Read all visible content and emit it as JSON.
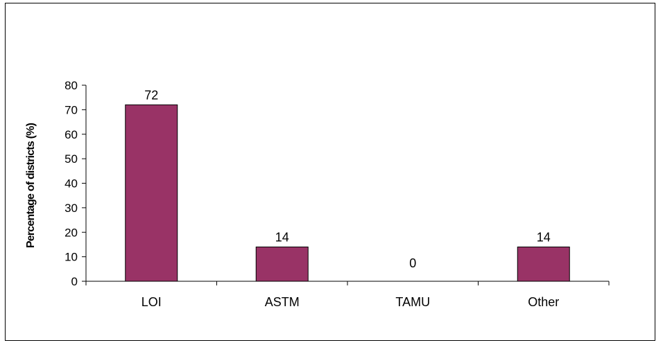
{
  "chart_data": {
    "type": "bar",
    "title": "",
    "xlabel": "",
    "ylabel": "Percentage of districts (%)",
    "categories": [
      "LOI",
      "ASTM",
      "TAMU",
      "Other"
    ],
    "values": [
      72,
      14,
      0,
      14
    ],
    "data_labels": [
      "72",
      "14",
      "0",
      "14"
    ],
    "yticks": [
      "0",
      "10",
      "20",
      "30",
      "40",
      "50",
      "60",
      "70",
      "80"
    ],
    "ylim": [
      0,
      80
    ],
    "grid": false,
    "legend": "none",
    "bar_color": "#993366"
  }
}
